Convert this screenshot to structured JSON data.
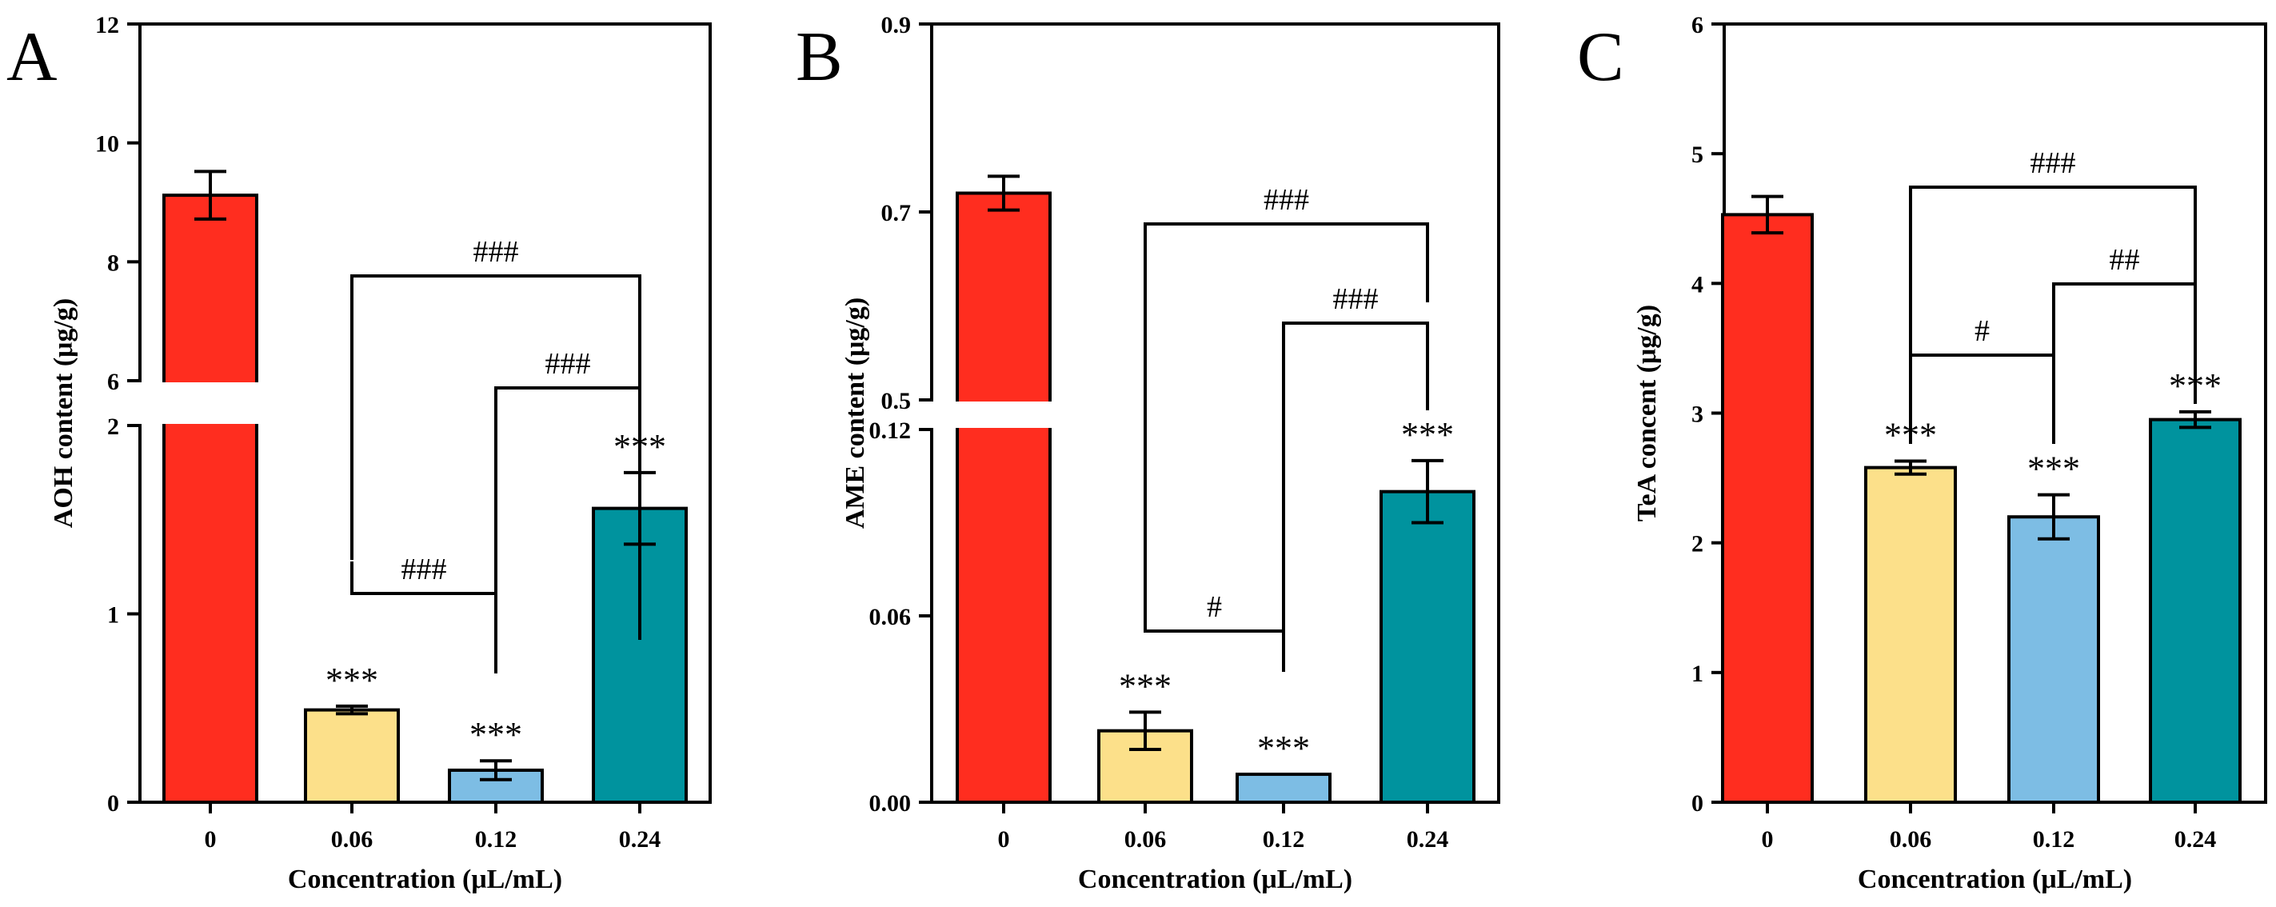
{
  "chart_data": [
    {
      "type": "bar",
      "panel_label": "A",
      "categories": [
        "0",
        "0.06",
        "0.12",
        "0.24"
      ],
      "values": [
        9.12,
        0.49,
        0.17,
        1.56
      ],
      "errors": [
        0.4,
        0.02,
        0.05,
        0.19
      ],
      "colors": [
        "#ff2d1f",
        "#fce08a",
        "#7dbde4",
        "#00939e"
      ],
      "xlabel": "Concentration (μL/mL)",
      "ylabel": "AOH content (μg/g)",
      "axis_break": true,
      "segments": [
        {
          "ylim": [
            0,
            2
          ],
          "ticks": [
            "0",
            "1",
            "2"
          ],
          "tick_values": [
            0,
            1,
            2
          ]
        },
        {
          "ylim": [
            6,
            12
          ],
          "ticks": [
            "6",
            "8",
            "10",
            "12"
          ],
          "tick_values": [
            6,
            8,
            10,
            12
          ]
        }
      ],
      "stars": [
        "",
        "***",
        "***",
        "***"
      ],
      "brackets": [
        {
          "from": 1,
          "to": 2,
          "label": "###"
        },
        {
          "from": 2,
          "to": 3,
          "label": "###"
        },
        {
          "from": 1,
          "to": 3,
          "label": "###"
        }
      ]
    },
    {
      "type": "bar",
      "panel_label": "B",
      "categories": [
        "0",
        "0.06",
        "0.12",
        "0.24"
      ],
      "values": [
        0.72,
        0.023,
        0.009,
        0.1
      ],
      "errors": [
        0.018,
        0.006,
        0.0,
        0.01
      ],
      "colors": [
        "#ff2d1f",
        "#fce08a",
        "#7dbde4",
        "#00939e"
      ],
      "xlabel": "Concentration (μL/mL)",
      "ylabel": "AME content (μg/g)",
      "axis_break": true,
      "segments": [
        {
          "ylim": [
            0,
            0.12
          ],
          "ticks": [
            "0.00",
            "0.06",
            "0.12"
          ],
          "tick_values": [
            0,
            0.06,
            0.12
          ]
        },
        {
          "ylim": [
            0.5,
            0.9
          ],
          "ticks": [
            "0.5",
            "0.7",
            "0.9"
          ],
          "tick_values": [
            0.5,
            0.7,
            0.9
          ]
        }
      ],
      "stars": [
        "",
        "***",
        "***",
        "***"
      ],
      "brackets": [
        {
          "from": 1,
          "to": 2,
          "label": "#"
        },
        {
          "from": 2,
          "to": 3,
          "label": "###"
        },
        {
          "from": 1,
          "to": 3,
          "label": "###"
        }
      ]
    },
    {
      "type": "bar",
      "panel_label": "C",
      "categories": [
        "0",
        "0.06",
        "0.12",
        "0.24"
      ],
      "values": [
        4.53,
        2.58,
        2.2,
        2.95
      ],
      "errors": [
        0.14,
        0.05,
        0.17,
        0.06
      ],
      "colors": [
        "#ff2d1f",
        "#fce08a",
        "#7dbde4",
        "#00939e"
      ],
      "xlabel": "Concentration (μL/mL)",
      "ylabel": "TeA concent (μg/g)",
      "axis_break": false,
      "segments": [
        {
          "ylim": [
            0,
            6
          ],
          "ticks": [
            "0",
            "1",
            "2",
            "3",
            "4",
            "5",
            "6"
          ],
          "tick_values": [
            0,
            1,
            2,
            3,
            4,
            5,
            6
          ]
        }
      ],
      "stars": [
        "",
        "***",
        "***",
        "***"
      ],
      "brackets": [
        {
          "from": 1,
          "to": 2,
          "label": "#"
        },
        {
          "from": 2,
          "to": 3,
          "label": "##"
        },
        {
          "from": 1,
          "to": 3,
          "label": "###"
        }
      ]
    }
  ]
}
